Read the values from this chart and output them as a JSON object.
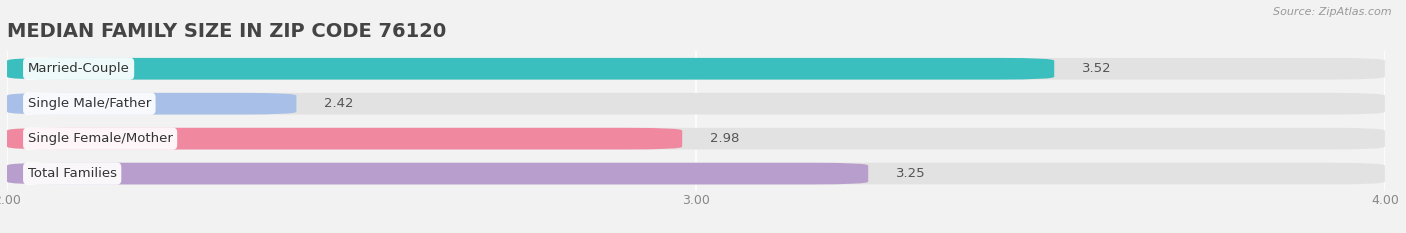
{
  "title": "MEDIAN FAMILY SIZE IN ZIP CODE 76120",
  "source": "Source: ZipAtlas.com",
  "categories": [
    "Married-Couple",
    "Single Male/Father",
    "Single Female/Mother",
    "Total Families"
  ],
  "values": [
    3.52,
    2.42,
    2.98,
    3.25
  ],
  "bar_colors": [
    "#3bbfbe",
    "#a8bfe8",
    "#f088a0",
    "#b89ecc"
  ],
  "background_color": "#f2f2f2",
  "bar_bg_color": "#e2e2e2",
  "xlim": [
    2.0,
    4.0
  ],
  "xticks": [
    2.0,
    3.0,
    4.0
  ],
  "label_fontsize": 9.5,
  "value_fontsize": 9.5,
  "title_fontsize": 14,
  "bar_height": 0.62,
  "value_inside_color": "white",
  "value_outside_color": "#555555"
}
